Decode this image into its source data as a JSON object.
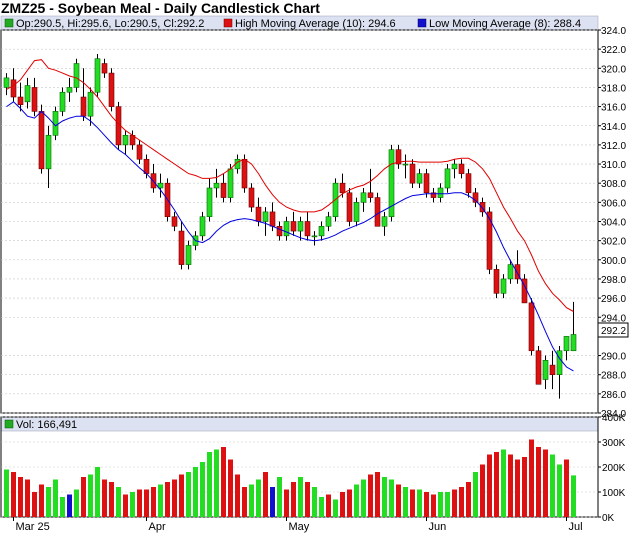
{
  "chart_data": {
    "type": "candlestick",
    "title": "ZMZ25 - Soybean Meal - Daily Candlestick Chart",
    "ohlc_summary": {
      "label": "Op:290.5, Hi:295.6, Lo:290.5, Cl:292.2",
      "open": 290.5,
      "high": 295.6,
      "low": 290.5,
      "close": 292.2
    },
    "moving_averages": [
      {
        "name": "High Moving Average (10): 294.6",
        "period": 10,
        "last": 294.6,
        "color": "#e00000"
      },
      {
        "name": "Low Moving Average (8): 288.4",
        "period": 8,
        "last": 288.4,
        "color": "#0000e0"
      }
    ],
    "last_price_label": "292.2",
    "price_axis": {
      "min": 284.0,
      "max": 324.0,
      "ticks": [
        "324.0",
        "322.0",
        "320.0",
        "318.0",
        "316.0",
        "314.0",
        "312.0",
        "310.0",
        "308.0",
        "306.0",
        "304.0",
        "302.0",
        "300.0",
        "298.0",
        "296.0",
        "294.0",
        "290.0",
        "288.0",
        "286.0",
        "284.0"
      ]
    },
    "x_axis": {
      "labels": [
        "Mar 25",
        "Apr",
        "May",
        "Jun",
        "Jul"
      ],
      "label_bar_index": [
        1,
        20,
        40,
        60,
        80
      ]
    },
    "candles": [
      [
        318.0,
        319.5,
        317.2,
        319.0
      ],
      [
        318.8,
        320.0,
        316.5,
        317.0
      ],
      [
        317.0,
        318.5,
        315.5,
        316.2
      ],
      [
        316.5,
        319.0,
        315.8,
        318.2
      ],
      [
        318.0,
        319.0,
        315.0,
        315.5
      ],
      [
        315.5,
        316.2,
        309.0,
        309.5
      ],
      [
        309.5,
        314.0,
        307.5,
        313.0
      ],
      [
        313.0,
        316.0,
        312.5,
        315.5
      ],
      [
        315.5,
        318.0,
        315.0,
        317.5
      ],
      [
        317.5,
        319.0,
        316.5,
        318.0
      ],
      [
        318.0,
        321.0,
        317.5,
        320.5
      ],
      [
        317.0,
        320.0,
        314.5,
        315.0
      ],
      [
        315.0,
        318.0,
        314.0,
        317.5
      ],
      [
        317.5,
        321.5,
        317.0,
        321.0
      ],
      [
        320.5,
        321.0,
        319.0,
        319.5
      ],
      [
        319.5,
        320.0,
        315.5,
        316.0
      ],
      [
        316.0,
        316.5,
        311.5,
        312.0
      ],
      [
        312.0,
        313.5,
        311.0,
        313.0
      ],
      [
        313.0,
        313.5,
        311.5,
        312.0
      ],
      [
        312.0,
        312.5,
        310.0,
        310.5
      ],
      [
        310.5,
        311.0,
        308.5,
        309.0
      ],
      [
        309.0,
        310.0,
        307.0,
        307.5
      ],
      [
        307.5,
        309.0,
        306.5,
        308.0
      ],
      [
        308.0,
        308.5,
        304.0,
        304.5
      ],
      [
        304.5,
        305.0,
        303.0,
        303.5
      ],
      [
        303.0,
        304.0,
        299.0,
        299.5
      ],
      [
        299.5,
        302.0,
        299.0,
        301.5
      ],
      [
        301.5,
        303.0,
        301.0,
        302.5
      ],
      [
        302.5,
        305.0,
        302.0,
        304.5
      ],
      [
        304.5,
        308.5,
        304.0,
        307.5
      ],
      [
        307.5,
        309.5,
        306.5,
        308.0
      ],
      [
        308.0,
        309.0,
        306.0,
        306.5
      ],
      [
        306.5,
        310.0,
        306.0,
        309.5
      ],
      [
        309.5,
        311.0,
        309.0,
        310.5
      ],
      [
        310.5,
        311.0,
        307.0,
        307.5
      ],
      [
        307.5,
        308.0,
        305.0,
        305.5
      ],
      [
        305.5,
        306.5,
        303.5,
        304.0
      ],
      [
        304.0,
        305.5,
        302.5,
        305.0
      ],
      [
        305.0,
        306.0,
        303.0,
        303.5
      ],
      [
        303.5,
        304.0,
        302.0,
        302.5
      ],
      [
        302.5,
        304.5,
        302.0,
        304.0
      ],
      [
        304.0,
        305.0,
        302.5,
        303.0
      ],
      [
        303.0,
        304.5,
        302.0,
        304.0
      ],
      [
        304.0,
        305.0,
        302.0,
        302.5
      ],
      [
        302.5,
        303.0,
        301.5,
        302.5
      ],
      [
        302.5,
        304.0,
        302.0,
        303.5
      ],
      [
        303.5,
        305.0,
        303.0,
        304.5
      ],
      [
        304.5,
        308.5,
        304.0,
        308.0
      ],
      [
        308.0,
        309.0,
        306.5,
        307.0
      ],
      [
        307.0,
        307.5,
        303.5,
        304.0
      ],
      [
        304.0,
        306.5,
        303.5,
        306.0
      ],
      [
        306.0,
        307.5,
        305.0,
        307.0
      ],
      [
        307.0,
        309.5,
        306.0,
        306.5
      ],
      [
        306.5,
        307.0,
        303.5,
        303.5
      ],
      [
        303.5,
        305.0,
        302.5,
        304.5
      ],
      [
        304.5,
        312.0,
        304.0,
        311.5
      ],
      [
        311.5,
        312.0,
        309.5,
        310.0
      ],
      [
        310.0,
        311.0,
        308.5,
        310.0
      ],
      [
        310.0,
        310.5,
        307.5,
        308.0
      ],
      [
        308.0,
        309.5,
        307.5,
        309.0
      ],
      [
        309.0,
        309.5,
        306.5,
        307.0
      ],
      [
        307.0,
        307.5,
        306.0,
        306.5
      ],
      [
        306.5,
        308.0,
        306.0,
        307.5
      ],
      [
        307.5,
        310.0,
        307.0,
        309.5
      ],
      [
        309.5,
        310.5,
        308.5,
        310.0
      ],
      [
        310.0,
        310.5,
        308.5,
        309.0
      ],
      [
        309.0,
        309.5,
        306.5,
        307.0
      ],
      [
        307.0,
        307.5,
        305.5,
        306.0
      ],
      [
        306.0,
        306.5,
        304.5,
        305.0
      ],
      [
        305.0,
        305.5,
        298.5,
        299.0
      ],
      [
        299.0,
        299.5,
        296.0,
        296.5
      ],
      [
        296.5,
        298.5,
        296.0,
        298.0
      ],
      [
        298.0,
        300.0,
        297.5,
        299.5
      ],
      [
        299.5,
        301.0,
        297.5,
        298.0
      ],
      [
        298.0,
        298.5,
        295.5,
        295.5
      ],
      [
        295.5,
        296.0,
        290.0,
        290.5
      ],
      [
        290.5,
        291.0,
        287.0,
        287.0
      ],
      [
        287.5,
        290.0,
        286.5,
        289.5
      ],
      [
        289.0,
        290.5,
        286.5,
        288.0
      ],
      [
        288.0,
        291.0,
        285.5,
        290.5
      ],
      [
        290.5,
        292.0,
        289.5,
        292.0
      ],
      [
        290.5,
        295.6,
        290.5,
        292.2
      ]
    ],
    "ma_high": [
      317.8,
      318.2,
      318.8,
      319.8,
      320.8,
      320.9,
      320.0,
      319.8,
      319.5,
      319.2,
      319.0,
      318.5,
      317.8,
      317.0,
      316.0,
      315.0,
      314.2,
      313.5,
      313.0,
      312.5,
      312.0,
      311.5,
      311.0,
      310.5,
      310.0,
      309.5,
      309.0,
      308.8,
      308.5,
      308.5,
      308.6,
      309.0,
      309.5,
      310.2,
      310.5,
      310.0,
      309.0,
      307.8,
      306.8,
      306.0,
      305.5,
      305.2,
      305.0,
      305.0,
      305.0,
      305.2,
      305.7,
      306.3,
      306.9,
      307.3,
      307.6,
      307.8,
      308.2,
      308.8,
      309.5,
      310.0,
      310.2,
      310.3,
      310.3,
      310.2,
      310.2,
      310.2,
      310.2,
      310.3,
      310.5,
      310.6,
      310.6,
      310.2,
      309.5,
      308.5,
      307.0,
      305.5,
      304.3,
      303.0,
      302.0,
      300.5,
      298.8,
      297.5,
      296.5,
      295.8,
      295.0,
      294.6
    ],
    "ma_low": [
      316.0,
      316.5,
      315.8,
      315.0,
      314.8,
      315.5,
      314.8,
      314.0,
      314.5,
      314.8,
      315.0,
      315.0,
      314.5,
      313.8,
      313.0,
      312.2,
      311.5,
      311.0,
      310.3,
      309.6,
      309.0,
      308.2,
      307.3,
      306.3,
      305.2,
      304.0,
      302.9,
      302.0,
      301.8,
      302.2,
      303.0,
      303.6,
      304.0,
      304.2,
      304.3,
      304.2,
      304.0,
      303.8,
      303.5,
      303.2,
      302.9,
      302.6,
      302.3,
      302.1,
      302.0,
      302.1,
      302.3,
      302.6,
      303.0,
      303.3,
      303.6,
      303.9,
      304.3,
      304.8,
      305.2,
      305.6,
      306.0,
      306.4,
      306.7,
      306.8,
      306.9,
      306.9,
      306.9,
      306.9,
      307.0,
      307.0,
      306.7,
      306.2,
      305.4,
      304.3,
      302.9,
      301.3,
      299.9,
      298.6,
      297.3,
      295.8,
      294.2,
      292.5,
      290.9,
      289.7,
      288.8,
      288.4
    ]
  },
  "volume": {
    "label": "Vol: 166,491",
    "axis_ticks": [
      "400K",
      "300K",
      "200K",
      "100K",
      "0K"
    ],
    "max": 400000,
    "values": [
      190000,
      180000,
      160000,
      150000,
      100000,
      130000,
      120000,
      150000,
      80000,
      90000,
      110000,
      160000,
      170000,
      200000,
      150000,
      140000,
      120000,
      90000,
      100000,
      110000,
      110000,
      120000,
      130000,
      140000,
      150000,
      170000,
      180000,
      200000,
      220000,
      260000,
      270000,
      280000,
      230000,
      170000,
      120000,
      130000,
      150000,
      180000,
      120000,
      160000,
      110000,
      140000,
      160000,
      140000,
      120000,
      80000,
      90000,
      70000,
      100000,
      110000,
      130000,
      150000,
      170000,
      180000,
      160000,
      150000,
      130000,
      120000,
      110000,
      110000,
      100000,
      90000,
      100000,
      100000,
      110000,
      120000,
      140000,
      180000,
      210000,
      250000,
      260000,
      270000,
      250000,
      230000,
      240000,
      310000,
      280000,
      270000,
      250000,
      210000,
      230000,
      166491
    ],
    "colors": [
      "g",
      "r",
      "r",
      "r",
      "r",
      "r",
      "g",
      "g",
      "g",
      "b",
      "g",
      "r",
      "g",
      "g",
      "r",
      "r",
      "g",
      "r",
      "g",
      "r",
      "r",
      "r",
      "g",
      "r",
      "r",
      "r",
      "g",
      "g",
      "g",
      "g",
      "g",
      "r",
      "r",
      "r",
      "r",
      "g",
      "g",
      "r",
      "b",
      "g",
      "r",
      "r",
      "g",
      "r",
      "g",
      "g",
      "r",
      "g",
      "r",
      "r",
      "g",
      "g",
      "r",
      "r",
      "g",
      "g",
      "r",
      "g",
      "r",
      "g",
      "r",
      "r",
      "g",
      "g",
      "r",
      "r",
      "r",
      "g",
      "r",
      "r",
      "r",
      "g",
      "r",
      "r",
      "r",
      "r",
      "r",
      "r",
      "g",
      "g",
      "r",
      "g"
    ]
  },
  "colors": {
    "up": "#22dd22",
    "down": "#dd1111",
    "neutral": "#1111cc",
    "grid": "#c8c8c8",
    "legend_bar": "#dde2f2"
  }
}
